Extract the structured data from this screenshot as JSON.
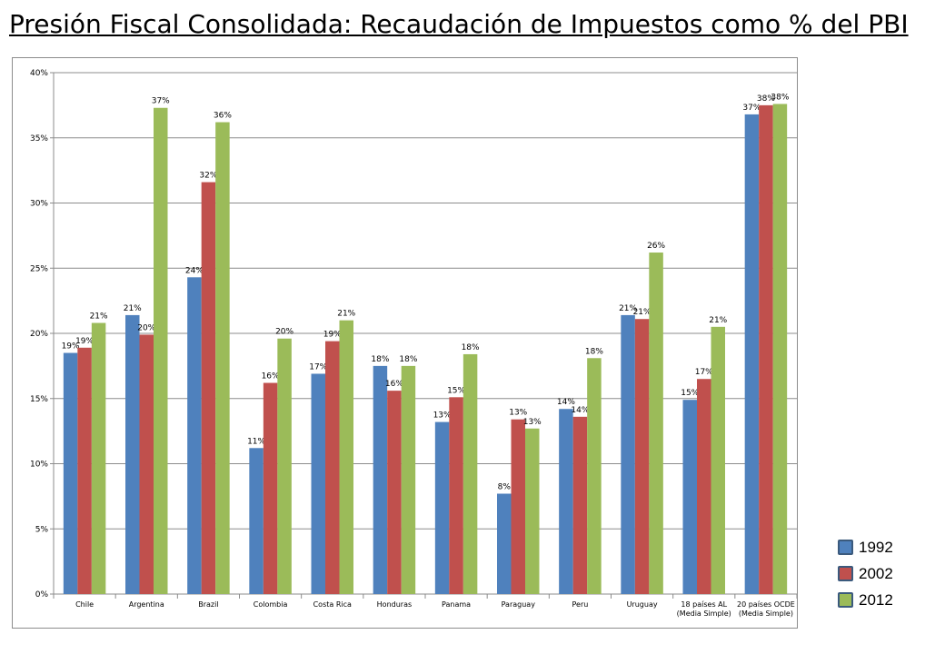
{
  "title": "Presión Fiscal Consolidada: Recaudación de Impuestos como % del PBI",
  "chart_data": {
    "type": "bar",
    "categories": [
      [
        "Chile"
      ],
      [
        "Argentina"
      ],
      [
        "Brazil"
      ],
      [
        "Colombia"
      ],
      [
        "Costa Rica"
      ],
      [
        "Honduras"
      ],
      [
        "Panama"
      ],
      [
        "Paraguay"
      ],
      [
        "Peru"
      ],
      [
        "Uruguay"
      ],
      [
        "18 países AL",
        "(Media Simple)"
      ],
      [
        "20 países OCDE",
        "(Media Simple)"
      ]
    ],
    "series": [
      {
        "name": "1992",
        "color": "#4f81bd",
        "values": [
          18.5,
          21.4,
          24.3,
          11.2,
          16.9,
          17.5,
          13.2,
          7.7,
          14.2,
          21.4,
          14.9,
          36.8
        ],
        "labels": [
          "19%",
          "21%",
          "24%",
          "11%",
          "17%",
          "18%",
          "13%",
          "8%",
          "14%",
          "21%",
          "15%",
          "37%"
        ]
      },
      {
        "name": "2002",
        "color": "#c0504d",
        "values": [
          18.9,
          19.9,
          31.6,
          16.2,
          19.4,
          15.6,
          15.1,
          13.4,
          13.6,
          21.1,
          16.5,
          37.5
        ],
        "labels": [
          "19%",
          "20%",
          "32%",
          "16%",
          "19%",
          "16%",
          "15%",
          "13%",
          "14%",
          "21%",
          "17%",
          "38%"
        ]
      },
      {
        "name": "2012",
        "color": "#9bbb59",
        "values": [
          20.8,
          37.3,
          36.2,
          19.6,
          21.0,
          17.5,
          18.4,
          12.7,
          18.1,
          26.2,
          20.5,
          37.6
        ],
        "labels": [
          "21%",
          "37%",
          "36%",
          "20%",
          "21%",
          "18%",
          "18%",
          "13%",
          "18%",
          "26%",
          "21%",
          "38%"
        ]
      }
    ],
    "ylim": [
      0,
      40
    ],
    "yticks": [
      0,
      5,
      10,
      15,
      20,
      25,
      30,
      35,
      40
    ],
    "ytick_labels": [
      "0%",
      "5%",
      "10%",
      "15%",
      "20%",
      "25%",
      "30%",
      "35%",
      "40%"
    ],
    "grid": true,
    "legend_position": "bottom-right-outside"
  }
}
